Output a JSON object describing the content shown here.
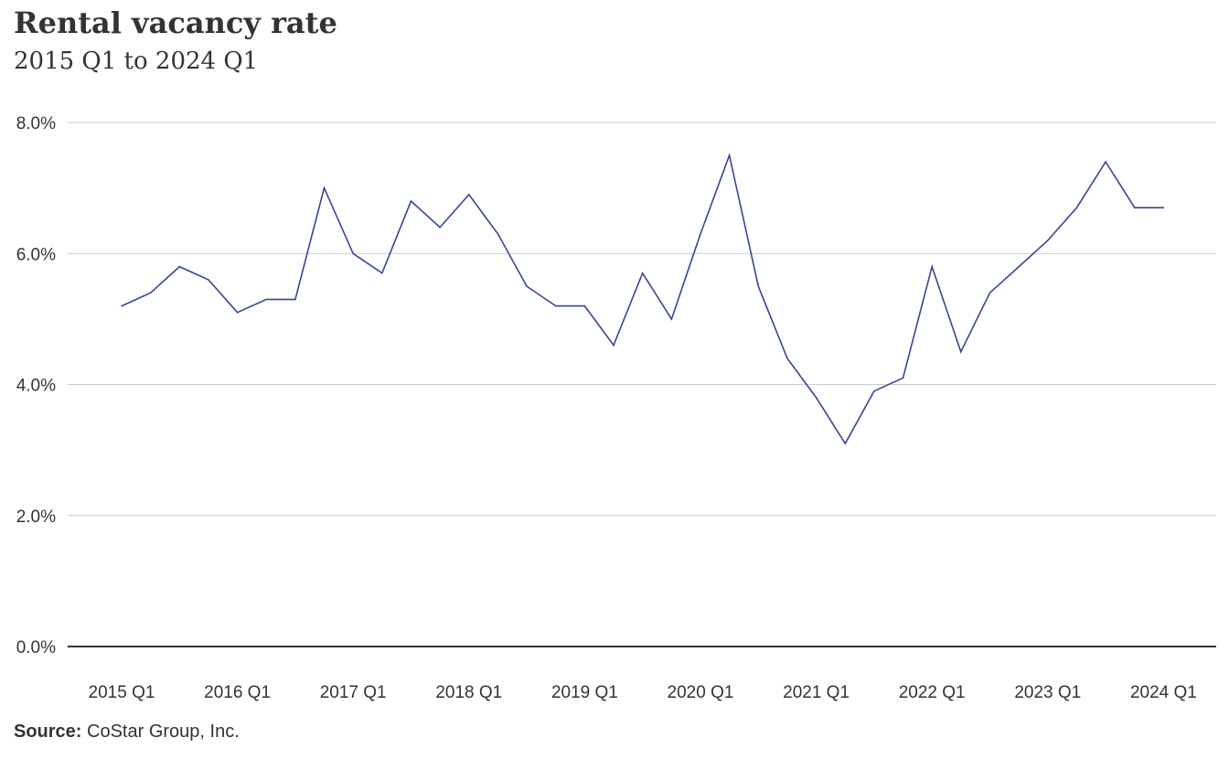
{
  "chart_data": {
    "type": "line",
    "title": "Rental vacancy rate",
    "subtitle": "2015 Q1 to 2024 Q1",
    "x": [
      "2015 Q1",
      "2015 Q2",
      "2015 Q3",
      "2015 Q4",
      "2016 Q1",
      "2016 Q2",
      "2016 Q3",
      "2016 Q4",
      "2017 Q1",
      "2017 Q2",
      "2017 Q3",
      "2017 Q4",
      "2018 Q1",
      "2018 Q2",
      "2018 Q3",
      "2018 Q4",
      "2019 Q1",
      "2019 Q2",
      "2019 Q3",
      "2019 Q4",
      "2020 Q1",
      "2020 Q2",
      "2020 Q3",
      "2020 Q4",
      "2021 Q1",
      "2021 Q2",
      "2021 Q3",
      "2021 Q4",
      "2022 Q1",
      "2022 Q2",
      "2022 Q3",
      "2022 Q4",
      "2023 Q1",
      "2023 Q2",
      "2023 Q3",
      "2023 Q4",
      "2024 Q1"
    ],
    "x_tick_labels": [
      "2015 Q1",
      "2016 Q1",
      "2017 Q1",
      "2018 Q1",
      "2019 Q1",
      "2020 Q1",
      "2021 Q1",
      "2022 Q1",
      "2023 Q1",
      "2024 Q1"
    ],
    "series": [
      {
        "values": [
          5.2,
          5.4,
          5.8,
          5.6,
          5.1,
          5.3,
          5.3,
          7.0,
          6.0,
          5.7,
          6.8,
          6.4,
          6.9,
          6.3,
          5.5,
          5.2,
          5.2,
          4.6,
          5.7,
          5.0,
          6.3,
          7.5,
          5.5,
          4.4,
          3.8,
          3.1,
          3.9,
          4.1,
          5.8,
          4.5,
          5.4,
          5.8,
          6.2,
          6.7,
          7.4,
          6.7,
          6.7
        ],
        "color": "#34469a"
      }
    ],
    "ylim": [
      0,
      8
    ],
    "y_ticks": [
      0,
      2,
      4,
      6,
      8
    ],
    "y_tick_labels": [
      "0.0%",
      "2.0%",
      "4.0%",
      "6.0%",
      "8.0%"
    ],
    "grid": true,
    "legend": "none",
    "xlabel": "",
    "ylabel": ""
  },
  "source": {
    "label": "Source:",
    "text": " CoStar Group, Inc."
  }
}
